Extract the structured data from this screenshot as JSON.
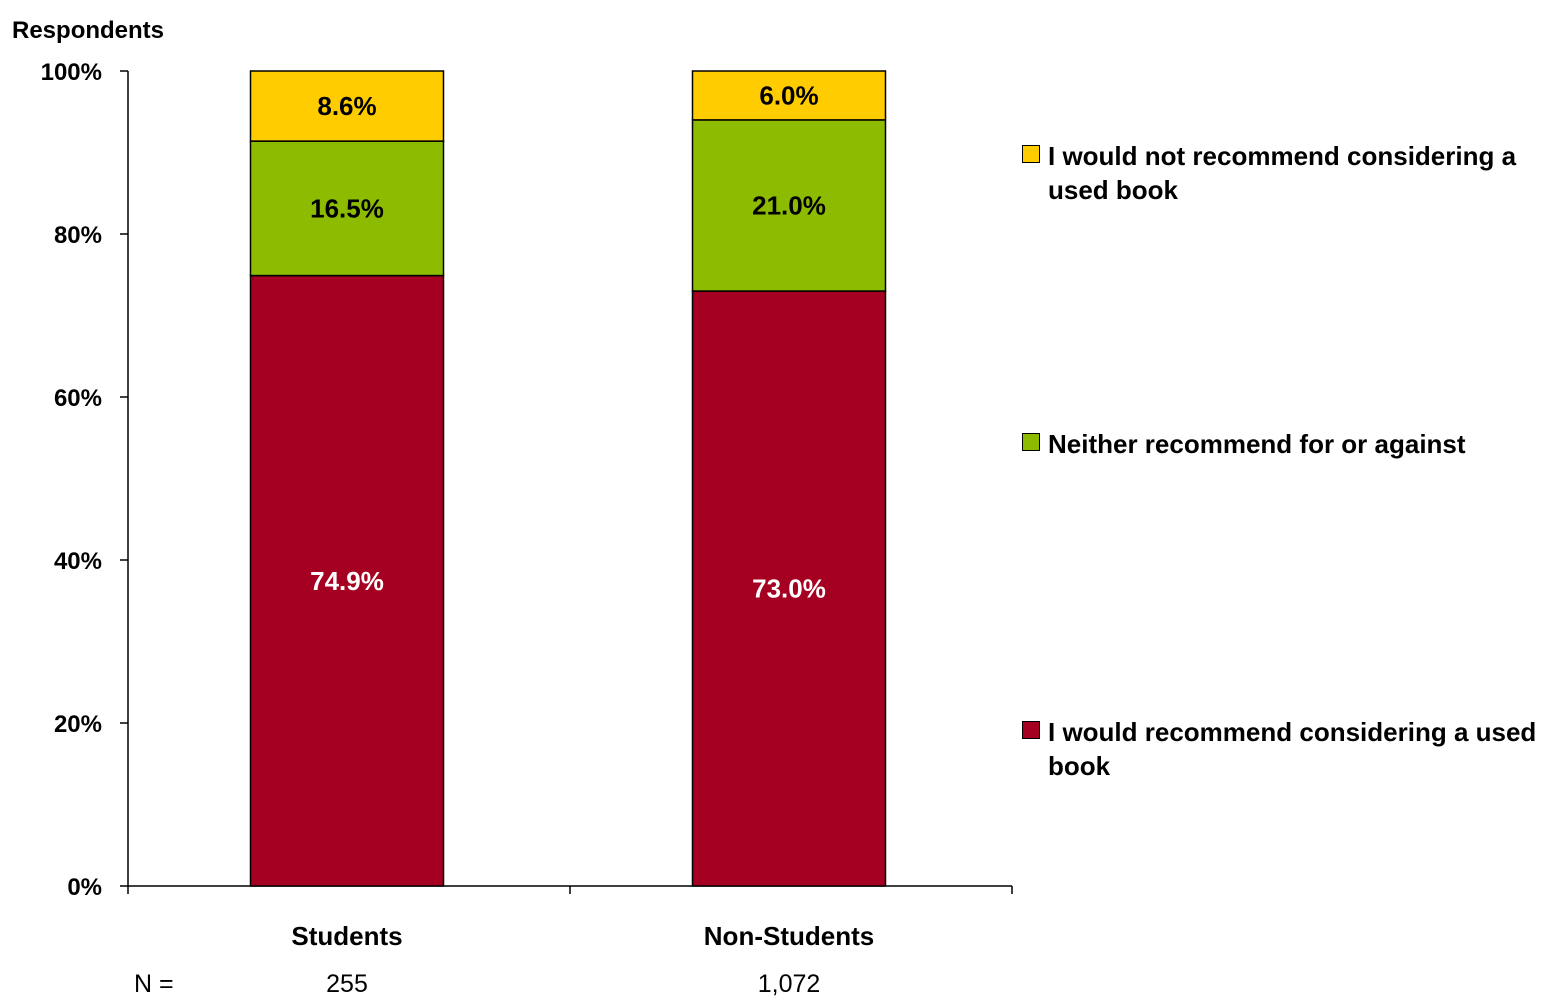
{
  "chart_data": {
    "type": "bar",
    "stacked": true,
    "ylabel": "Respondents",
    "xlabel": "",
    "ylim": [
      0,
      100
    ],
    "yticks": [
      "0%",
      "20%",
      "40%",
      "60%",
      "80%",
      "100%"
    ],
    "categories": [
      "Students",
      "Non-Students"
    ],
    "series": [
      {
        "name": "I would recommend considering a used book",
        "values": [
          74.9,
          73.0
        ],
        "labels": [
          "74.9%",
          "73.0%"
        ],
        "color": "#a50021",
        "label_color": "#ffffff"
      },
      {
        "name": "Neither recommend for or against",
        "values": [
          16.5,
          21.0
        ],
        "labels": [
          "16.5%",
          "21.0%"
        ],
        "color": "#8cbb00",
        "label_color": "#000000"
      },
      {
        "name": "I would not recommend considering a used book",
        "values": [
          8.6,
          6.0
        ],
        "labels": [
          "8.6%",
          "6.0%"
        ],
        "color": "#ffcc00",
        "label_color": "#000000"
      }
    ],
    "n_row": {
      "label": "N =",
      "values": [
        "255",
        "1,072"
      ]
    },
    "grid": false,
    "legend_position": "right"
  }
}
